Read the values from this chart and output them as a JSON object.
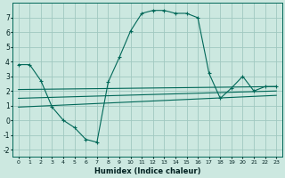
{
  "xlabel": "Humidex (Indice chaleur)",
  "ylabel": "",
  "background_color": "#cce8e0",
  "grid_color": "#a0c8c0",
  "line_color": "#006858",
  "xlim": [
    -0.5,
    23.5
  ],
  "ylim": [
    -2.5,
    8.0
  ],
  "xticks": [
    0,
    1,
    2,
    3,
    4,
    5,
    6,
    7,
    8,
    9,
    10,
    11,
    12,
    13,
    14,
    15,
    16,
    17,
    18,
    19,
    20,
    21,
    22,
    23
  ],
  "yticks": [
    -2,
    -1,
    0,
    1,
    2,
    3,
    4,
    5,
    6,
    7
  ],
  "series": [
    {
      "x": [
        0,
        1,
        2,
        3,
        4,
        5,
        6,
        7,
        8,
        9,
        10,
        11,
        12,
        13,
        14,
        15,
        16,
        17,
        18,
        19,
        20,
        21,
        22,
        23
      ],
      "y": [
        3.8,
        3.8,
        2.7,
        0.9,
        0.0,
        -0.5,
        -1.3,
        -1.5,
        2.6,
        4.3,
        6.1,
        7.3,
        7.5,
        7.5,
        7.3,
        7.3,
        7.0,
        3.2,
        1.5,
        2.2,
        3.0,
        2.0,
        2.3,
        2.3
      ],
      "marker": "+"
    },
    {
      "x": [
        0,
        23
      ],
      "y": [
        2.1,
        2.3
      ],
      "marker": null
    },
    {
      "x": [
        0,
        23
      ],
      "y": [
        1.5,
        2.0
      ],
      "marker": null
    },
    {
      "x": [
        0,
        23
      ],
      "y": [
        0.9,
        1.7
      ],
      "marker": null
    }
  ]
}
